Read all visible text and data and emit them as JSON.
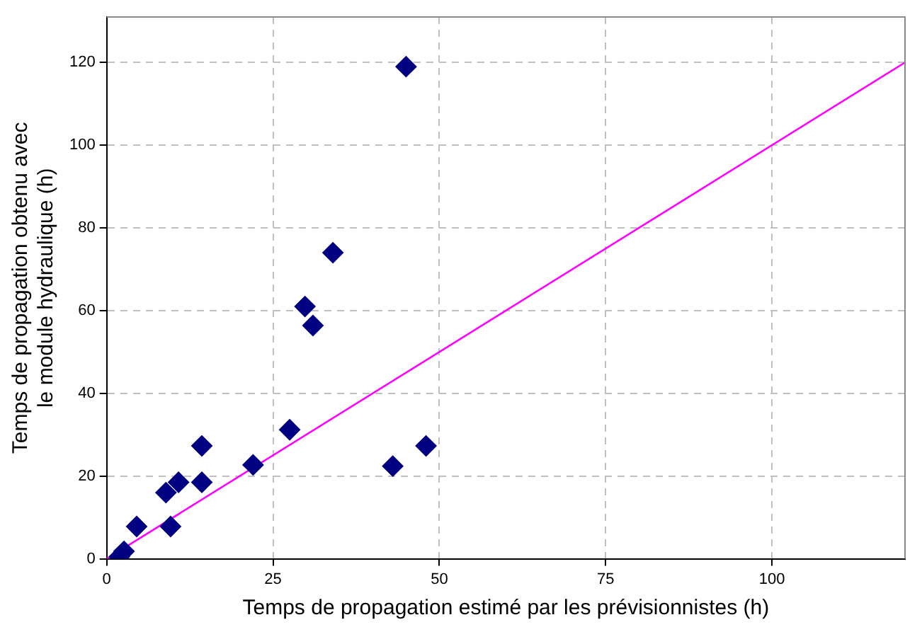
{
  "chart_data": {
    "type": "scatter",
    "xlabel": "Temps de propagation estimé par les prévisionnistes (h)",
    "ylabel": "Temps de propagation obtenu avec\nle module hydraulique (h)",
    "xlim": [
      0,
      120
    ],
    "ylim": [
      0,
      131
    ],
    "xticks": [
      0,
      25,
      50,
      75,
      100
    ],
    "yticks": [
      0,
      20,
      40,
      60,
      80,
      100,
      120
    ],
    "grid": true,
    "marker": "diamond",
    "series": [
      {
        "color": "#000080",
        "x": [
          45,
          34,
          29.8,
          31,
          27.5,
          43,
          48,
          22,
          14.3,
          14.3,
          10.8,
          8.9,
          9.6,
          4.5,
          2.6,
          1.9
        ],
        "values": [
          119,
          74,
          61,
          56.4,
          31.2,
          22.4,
          27.3,
          22.7,
          27.3,
          18.5,
          18.5,
          16,
          7.8,
          7.8,
          1.8,
          0.5
        ]
      },
      {
        "type": "line",
        "color": "#ff00ff",
        "marker": "none",
        "x": [
          0,
          120
        ],
        "values": [
          0,
          120
        ]
      }
    ]
  }
}
